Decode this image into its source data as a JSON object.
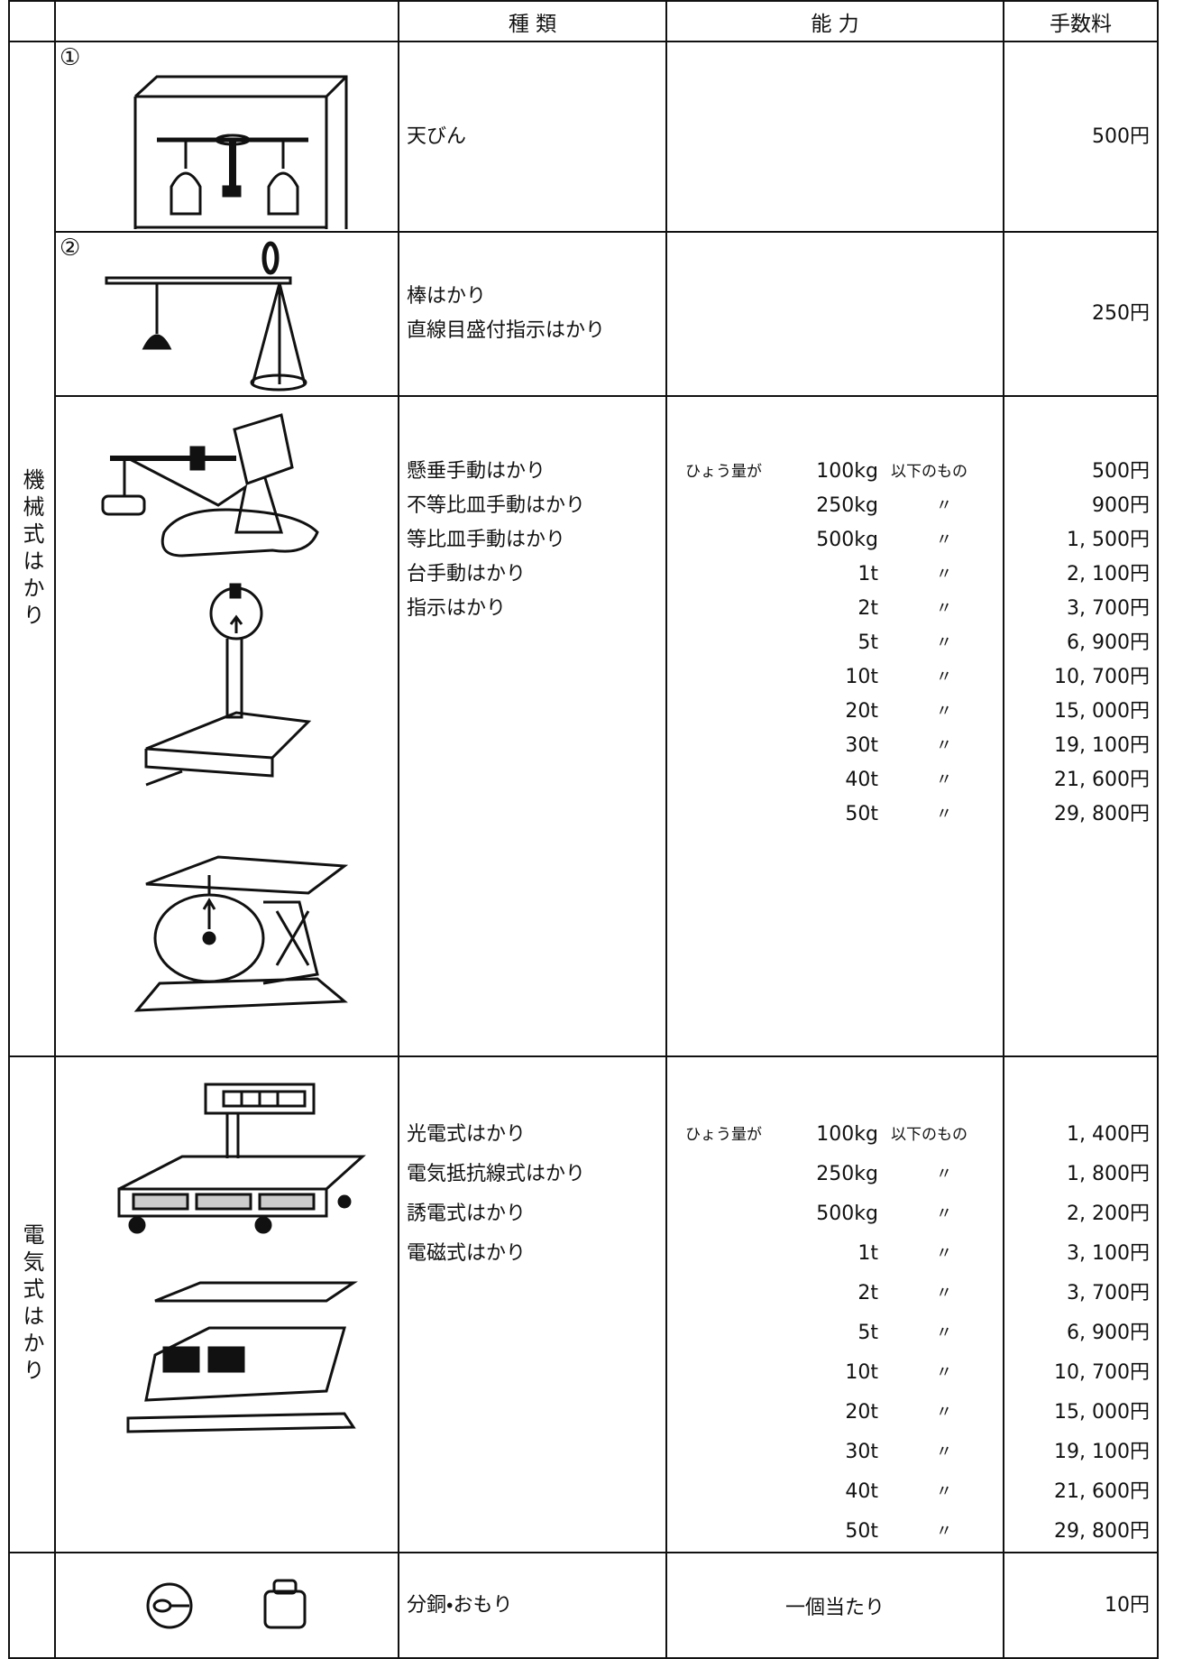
{
  "header": {
    "type": "種 類",
    "capacity": "能 力",
    "fee": "手数料"
  },
  "sections": [
    {
      "label": "機械式はかり",
      "rows": [
        {
          "marker": "①",
          "types": [
            "天びん"
          ],
          "fees": [
            "500円"
          ]
        },
        {
          "marker": "②",
          "types": [
            "棒はかり",
            "直線目盛付指示はかり"
          ],
          "fees": [
            "250円"
          ]
        },
        {
          "types": [
            "懸垂手動はかり",
            "不等比皿手動はかり",
            "等比皿手動はかり",
            "台手動はかり",
            "指示はかり"
          ],
          "capacity_prefix": "ひょう量が",
          "capacities": [
            {
              "amount": "100kg",
              "note": "以下のもの"
            },
            {
              "amount": "250kg",
              "note": "〃"
            },
            {
              "amount": "500kg",
              "note": "〃"
            },
            {
              "amount": "1t",
              "note": "〃"
            },
            {
              "amount": "2t",
              "note": "〃"
            },
            {
              "amount": "5t",
              "note": "〃"
            },
            {
              "amount": "10t",
              "note": "〃"
            },
            {
              "amount": "20t",
              "note": "〃"
            },
            {
              "amount": "30t",
              "note": "〃"
            },
            {
              "amount": "40t",
              "note": "〃"
            },
            {
              "amount": "50t",
              "note": "〃"
            }
          ],
          "fees": [
            "500円",
            "900円",
            "1, 500円",
            "2, 100円",
            "3, 700円",
            "6, 900円",
            "10, 700円",
            "15, 000円",
            "19, 100円",
            "21, 600円",
            "29, 800円"
          ]
        }
      ]
    },
    {
      "label": "電気式はかり",
      "rows": [
        {
          "types": [
            "光電式はかり",
            "電気抵抗線式はかり",
            "誘電式はかり",
            "電磁式はかり"
          ],
          "capacity_prefix": "ひょう量が",
          "capacities": [
            {
              "amount": "100kg",
              "note": "以下のもの"
            },
            {
              "amount": "250kg",
              "note": "〃"
            },
            {
              "amount": "500kg",
              "note": "〃"
            },
            {
              "amount": "1t",
              "note": "〃"
            },
            {
              "amount": "2t",
              "note": "〃"
            },
            {
              "amount": "5t",
              "note": "〃"
            },
            {
              "amount": "10t",
              "note": "〃"
            },
            {
              "amount": "20t",
              "note": "〃"
            },
            {
              "amount": "30t",
              "note": "〃"
            },
            {
              "amount": "40t",
              "note": "〃"
            },
            {
              "amount": "50t",
              "note": "〃"
            }
          ],
          "fees": [
            "1, 400円",
            "1, 800円",
            "2, 200円",
            "3, 100円",
            "3, 700円",
            "6, 900円",
            "10, 700円",
            "15, 000円",
            "19, 100円",
            "21, 600円",
            "29, 800円"
          ]
        }
      ]
    },
    {
      "rows": [
        {
          "types": [
            "分銅・おもり"
          ],
          "capacity": "一個当たり",
          "fees": [
            "10円"
          ]
        }
      ]
    }
  ]
}
